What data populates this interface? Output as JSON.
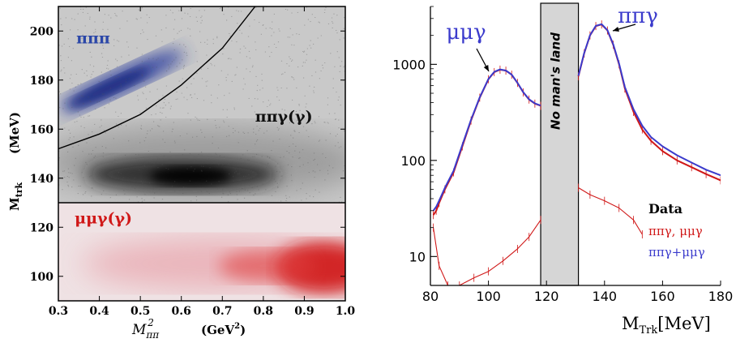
{
  "chart_data": [
    {
      "type": "scatter",
      "subtype": "2d-density",
      "xlabel_symbol": "M",
      "xlabel_sub": "ππ",
      "xlabel_sup": "2",
      "xlabel_unit": "(GeV",
      "xlabel_unit_sup": "2",
      "xlabel_unit_close": ")",
      "ylabel_symbol": "M",
      "ylabel_sub": "trk",
      "ylabel_unit": "(MeV)",
      "xlim": [
        0.3,
        1.0
      ],
      "ylim": [
        90,
        210
      ],
      "x_ticks": [
        "0.3",
        "0.4",
        "0.5",
        "0.6",
        "0.7",
        "0.8",
        "0.9",
        "1.0"
      ],
      "y_ticks": [
        "100",
        "120",
        "140",
        "160",
        "180",
        "200"
      ],
      "regions": [
        {
          "label": "πππ",
          "color": "#2a46a8",
          "center_x": 0.45,
          "center_y": 178
        },
        {
          "label": "ππγ(γ)",
          "color": "#111111",
          "center_x": 0.6,
          "center_y": 140
        },
        {
          "label": "μμγ(γ)",
          "color": "#d01818",
          "center_x": 0.85,
          "center_y": 102
        }
      ],
      "separator_horizontal_y": 130,
      "separator_curve": [
        [
          0.3,
          152
        ],
        [
          0.4,
          158
        ],
        [
          0.5,
          166
        ],
        [
          0.6,
          178
        ],
        [
          0.7,
          193
        ],
        [
          0.78,
          210
        ]
      ]
    },
    {
      "type": "line",
      "y_scale": "log",
      "xlabel_symbol": "M",
      "xlabel_sub": "Trk",
      "xlabel_unit": "[MeV]",
      "xlim": [
        80,
        180
      ],
      "ylim": [
        5,
        4000
      ],
      "x_ticks": [
        "80",
        "100",
        "120",
        "140",
        "160",
        "180"
      ],
      "y_ticks": [
        "10",
        "100",
        "1000"
      ],
      "band_label": "No man's land",
      "band_range": [
        118,
        131
      ],
      "peak_labels": [
        {
          "text": "μμγ",
          "color": "#3b3bcc",
          "x": 105,
          "y": 880
        },
        {
          "text": "ππγ",
          "color": "#3b3bcc",
          "x": 139,
          "y": 2600
        }
      ],
      "legend": {
        "title": "Data",
        "entries": [
          {
            "text": "ππγ, μμγ",
            "color": "#d01818"
          },
          {
            "text": "ππγ+μμγ",
            "color": "#3b3bcc"
          }
        ]
      },
      "series": [
        {
          "key": "data_left",
          "color": "#d01818",
          "x": [
            81,
            82,
            83,
            85,
            88,
            91,
            94,
            97,
            100,
            102,
            104,
            106,
            108,
            110,
            112,
            114,
            116,
            118
          ],
          "y": [
            27,
            30,
            36,
            50,
            75,
            140,
            260,
            450,
            700,
            830,
            880,
            860,
            780,
            640,
            510,
            430,
            390,
            370
          ]
        },
        {
          "key": "sum_left",
          "color": "#3b3bcc",
          "x": [
            81,
            82,
            83,
            85,
            88,
            91,
            94,
            97,
            100,
            102,
            104,
            106,
            108,
            110,
            112,
            114,
            116,
            118
          ],
          "y": [
            30,
            33,
            38,
            52,
            78,
            145,
            265,
            455,
            705,
            835,
            885,
            862,
            782,
            642,
            512,
            432,
            392,
            372
          ]
        },
        {
          "key": "data_right",
          "color": "#d01818",
          "x": [
            131,
            133,
            135,
            137,
            139,
            141,
            143,
            145,
            147,
            150,
            153,
            156,
            160,
            165,
            170,
            175,
            180
          ],
          "y": [
            750,
            1300,
            2000,
            2500,
            2600,
            2250,
            1600,
            1000,
            560,
            320,
            210,
            160,
            125,
            100,
            85,
            72,
            62
          ]
        },
        {
          "key": "sum_right",
          "color": "#3b3bcc",
          "x": [
            131,
            133,
            135,
            137,
            139,
            141,
            143,
            145,
            147,
            150,
            153,
            156,
            160,
            165,
            170,
            175,
            180
          ],
          "y": [
            760,
            1310,
            2010,
            2520,
            2620,
            2270,
            1620,
            1020,
            580,
            340,
            230,
            175,
            140,
            113,
            95,
            80,
            70
          ]
        },
        {
          "key": "mumu_left",
          "color": "#d01818",
          "x": [
            81,
            83,
            86,
            90,
            95,
            100,
            105,
            110,
            114,
            118
          ],
          "y": [
            20,
            8,
            5,
            5,
            6,
            7,
            9,
            12,
            16,
            24
          ]
        },
        {
          "key": "mumu_right",
          "color": "#d01818",
          "x": [
            131,
            135,
            140,
            145,
            150,
            153
          ],
          "y": [
            52,
            44,
            38,
            32,
            24,
            17
          ]
        }
      ]
    }
  ]
}
